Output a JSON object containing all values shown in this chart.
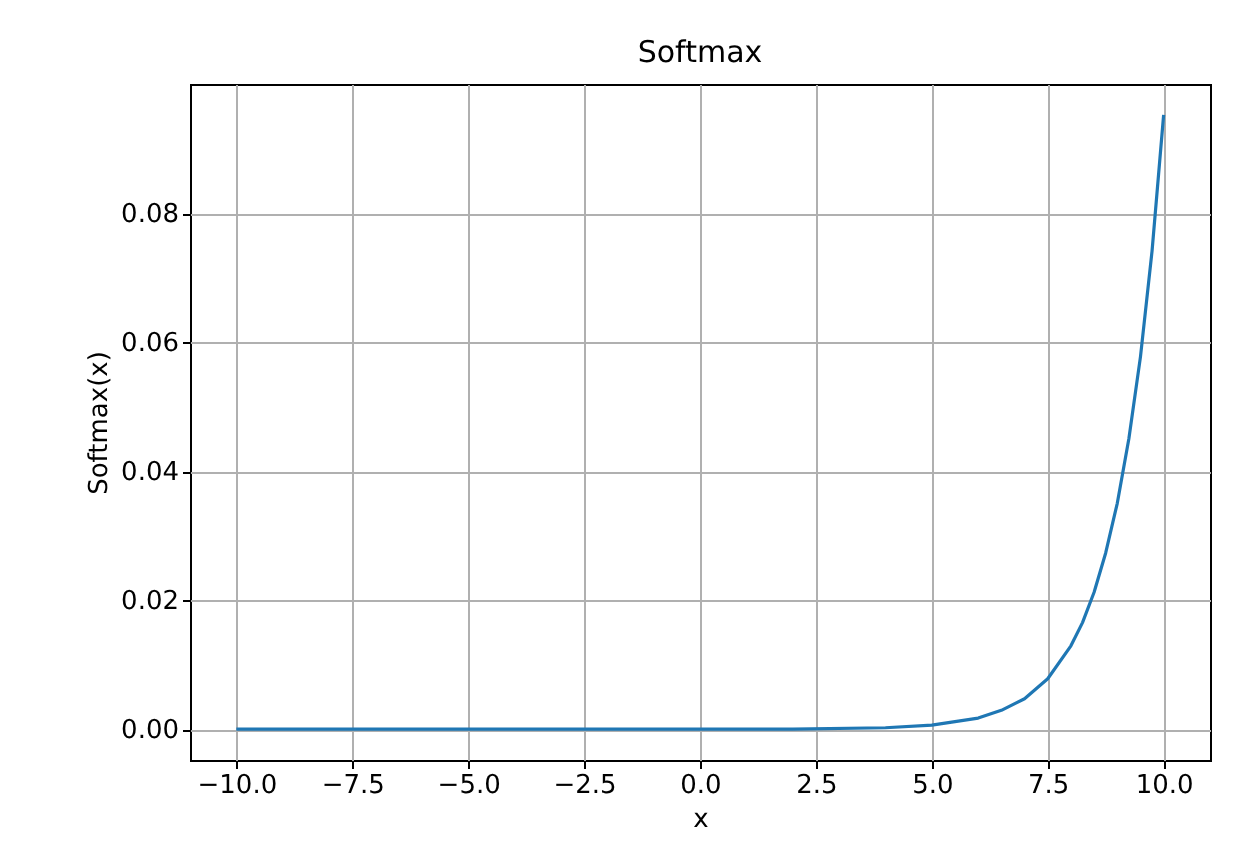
{
  "chart_data": {
    "type": "line",
    "title": "Softmax",
    "xlabel": "x",
    "ylabel": "Softmax(x)",
    "x": [
      -10,
      -7.5,
      -5,
      -2.5,
      0,
      2,
      4,
      5,
      6,
      6.5,
      7,
      7.5,
      8,
      8.25,
      8.5,
      8.75,
      9,
      9.25,
      9.5,
      9.75,
      10
    ],
    "series": [
      {
        "color": "#1f77b4",
        "values": [
          0,
          0,
          0,
          0,
          0,
          0,
          0.0002,
          0.0006,
          0.0017,
          0.0029,
          0.0047,
          0.0078,
          0.0129,
          0.0165,
          0.0212,
          0.0273,
          0.035,
          0.045,
          0.0577,
          0.0741,
          0.0952
        ]
      }
    ],
    "xlim": [
      -11,
      11
    ],
    "xticks": [
      {
        "value": -10,
        "label": "−10.0"
      },
      {
        "value": -7.5,
        "label": "−7.5"
      },
      {
        "value": -5,
        "label": "−5.0"
      },
      {
        "value": -2.5,
        "label": "−2.5"
      },
      {
        "value": 0,
        "label": "0.0"
      },
      {
        "value": 2.5,
        "label": "2.5"
      },
      {
        "value": 5,
        "label": "5.0"
      },
      {
        "value": 7.5,
        "label": "7.5"
      },
      {
        "value": 10,
        "label": "10.0"
      }
    ],
    "ylim": [
      -0.0048,
      0.1
    ],
    "yticks": [
      {
        "value": 0,
        "label": "0.00"
      },
      {
        "value": 0.02,
        "label": "0.02"
      },
      {
        "value": 0.04,
        "label": "0.04"
      },
      {
        "value": 0.06,
        "label": "0.06"
      },
      {
        "value": 0.08,
        "label": "0.08"
      }
    ],
    "grid": true
  }
}
